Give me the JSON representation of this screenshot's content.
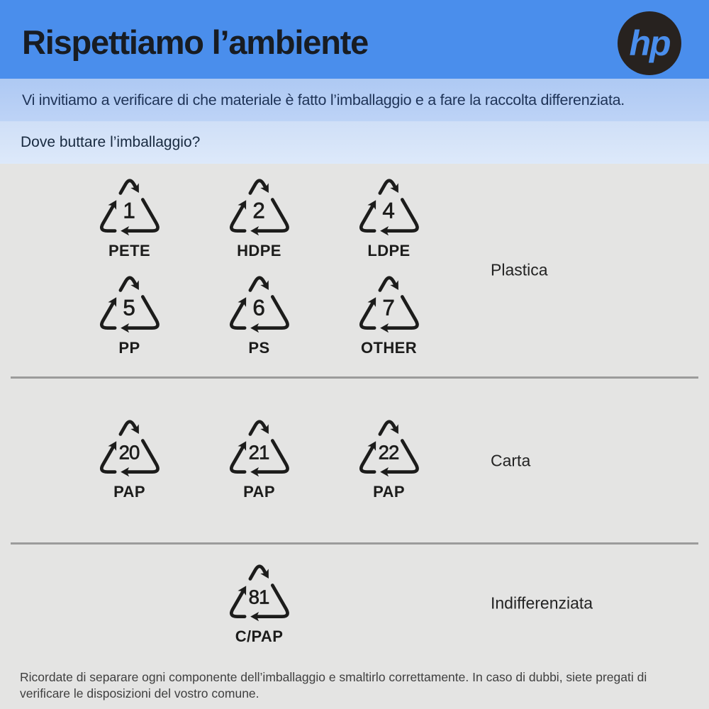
{
  "header": {
    "title": "Rispettiamo l’ambiente",
    "logo_text": "hp"
  },
  "banner": {
    "text": "Vi invitiamo a verificare di che materiale è fatto l’imballaggio e a fare la raccolta differenziata."
  },
  "question": {
    "text": "Dove buttare l’imballaggio?"
  },
  "sections": [
    {
      "label": "Plastica",
      "rows": [
        [
          {
            "code": "1",
            "material": "PETE"
          },
          {
            "code": "2",
            "material": "HDPE"
          },
          {
            "code": "4",
            "material": "LDPE"
          }
        ],
        [
          {
            "code": "5",
            "material": "PP"
          },
          {
            "code": "6",
            "material": "PS"
          },
          {
            "code": "7",
            "material": "OTHER"
          }
        ]
      ]
    },
    {
      "label": "Carta",
      "rows": [
        [
          {
            "code": "20",
            "material": "PAP"
          },
          {
            "code": "21",
            "material": "PAP"
          },
          {
            "code": "22",
            "material": "PAP"
          }
        ]
      ]
    },
    {
      "label": "Indifferenziata",
      "rows": [
        [
          {
            "code": "81",
            "material": "C/PAP",
            "col": 2
          }
        ]
      ]
    }
  ],
  "footer": {
    "text": "Ricordate di separare ogni componente dell’imballaggio e smaltirlo correttamente. In caso di dubbi, siete pregati di verificare le disposizioni del vostro comune."
  },
  "colors": {
    "header_bg": "#4a8eec",
    "header_text": "#181c22",
    "logo_circle": "#27221f",
    "banner_bg": "#b4ccf4",
    "banner_text": "#1e3357",
    "question_bg": "#d6e3f8",
    "question_text": "#182a40",
    "body_bg": "#e4e4e3",
    "divider": "#9b9b9b",
    "symbol": "#1c1c1b",
    "label_text": "#232323",
    "footer_text": "#3f3f3f"
  }
}
